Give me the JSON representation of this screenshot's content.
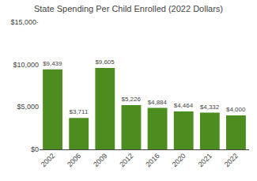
{
  "chart_data": {
    "type": "bar",
    "title": "State Spending Per Child Enrolled (2022 Dollars)",
    "categories": [
      "2002",
      "2006",
      "2009",
      "2012",
      "2016",
      "2020",
      "2021",
      "2022"
    ],
    "values": [
      9439,
      3711,
      9605,
      5226,
      4884,
      4464,
      4332,
      4000
    ],
    "value_labels": [
      "$9,439",
      "$3,711",
      "$9,605",
      "$5,226",
      "$4,884",
      "$4,464",
      "$4,332",
      "$4,000"
    ],
    "data_labels": true,
    "color": "#4d8c1e",
    "ylim": [
      0,
      15000
    ],
    "yticks": [
      {
        "value": 0,
        "label": "$0"
      },
      {
        "value": 5000,
        "label": "$5,000"
      },
      {
        "value": 10000,
        "label": "$10,000"
      },
      {
        "value": 15000,
        "label": "$15,000·"
      }
    ],
    "grid": false
  }
}
